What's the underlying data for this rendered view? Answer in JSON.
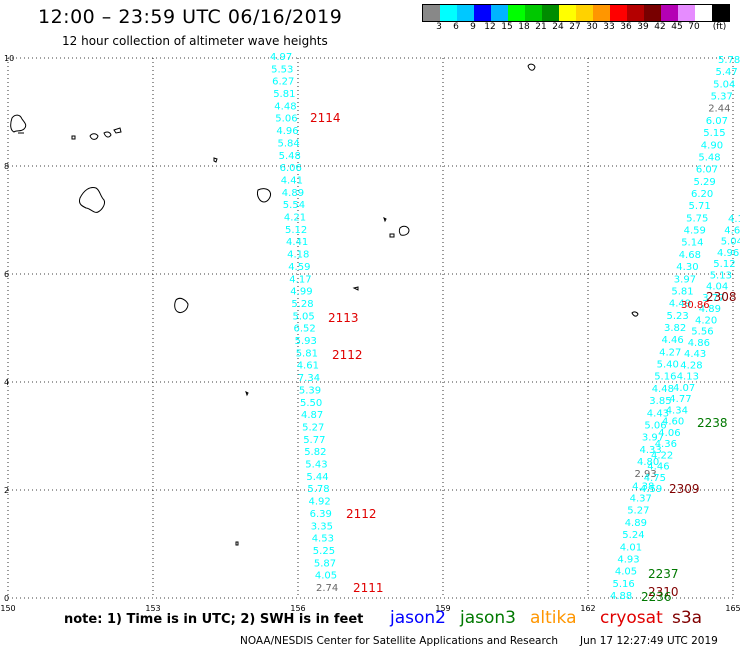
{
  "header": {
    "title": "12:00 – 23:59 UTC 06/16/2019",
    "subtitle": "12 hour collection of altimeter wave heights"
  },
  "legend": {
    "unit": "(ft)",
    "swatches": [
      {
        "color": "#888888",
        "label": ""
      },
      {
        "color": "#00ffff",
        "label": "3"
      },
      {
        "color": "#00c8ff",
        "label": "6"
      },
      {
        "color": "#0000ff",
        "label": "9"
      },
      {
        "color": "#00b4ff",
        "label": "12"
      },
      {
        "color": "#00ff00",
        "label": "15"
      },
      {
        "color": "#00c800",
        "label": "18"
      },
      {
        "color": "#008c00",
        "label": "21"
      },
      {
        "color": "#ffff00",
        "label": "24"
      },
      {
        "color": "#ffd200",
        "label": "27"
      },
      {
        "color": "#ff9600",
        "label": "30"
      },
      {
        "color": "#ff0000",
        "label": "33"
      },
      {
        "color": "#b40000",
        "label": "36"
      },
      {
        "color": "#780000",
        "label": "39"
      },
      {
        "color": "#b400b4",
        "label": "42"
      },
      {
        "color": "#e68cff",
        "label": "45"
      },
      {
        "color": "#ffffff",
        "label": "70"
      },
      {
        "color": "#000000",
        "label": "(ft)"
      }
    ]
  },
  "map": {
    "x_ticks": [
      "150",
      "153",
      "156",
      "159",
      "162",
      "165"
    ],
    "y_ticks": [
      "10",
      "8",
      "6",
      "4",
      "2",
      "0"
    ],
    "x_range": [
      150,
      165
    ],
    "y_range": [
      0,
      10
    ]
  },
  "tracks": [
    {
      "id": "track-156",
      "color": "#00ffff",
      "values": [
        "4.97",
        "5.53",
        "6.27",
        "5.81",
        "4.48",
        "5.06",
        "4.96",
        "5.84",
        "5.48",
        "6.06",
        "4.41",
        "4.89",
        "5.54",
        "4.21",
        "5.12",
        "4.41",
        "4.18",
        "4.59",
        "4.17",
        "4.99",
        "5.28",
        "5.05",
        "6.52",
        "5.93",
        "5.81",
        "4.61",
        "7.34",
        "5.39",
        "5.50",
        "4.87",
        "5.27",
        "5.77",
        "5.82",
        "5.43",
        "5.44",
        "5.78",
        "4.92",
        "6.39",
        "3.35",
        "4.53",
        "5.25",
        "5.87",
        "4.05",
        "2.74"
      ]
    },
    {
      "id": "track-164",
      "color": "#00ffff",
      "values": [
        "5.78",
        "5.47",
        "5.04",
        "5.37",
        "2.44",
        "6.07",
        "5.15",
        "4.90",
        "5.48",
        "6.07",
        "5.29",
        "6.20",
        "5.71",
        "5.75",
        "4.59",
        "5.14",
        "4.68",
        "4.30",
        "3.97",
        "5.81",
        "4.49",
        "5.23",
        "3.82",
        "4.46",
        "4.27",
        "5.40",
        "5.16",
        "4.48",
        "3.85",
        "4.43",
        "5.06",
        "3.97",
        "4.33",
        "4.80",
        "2.93",
        "4.38",
        "4.37",
        "5.27",
        "4.89",
        "5.24",
        "4.01",
        "4.93",
        "4.05",
        "5.16",
        "4.88"
      ]
    },
    {
      "id": "track-165",
      "color": "#00ffff",
      "values": [
        "4.1",
        "4.6",
        "5.04",
        "4.96",
        "5.12",
        "5.13",
        "4.04",
        "3.77",
        "4.89",
        "4.20",
        "5.56",
        "4.86",
        "4.43",
        "4.28",
        "4.13",
        "4.07",
        "4.77",
        "4.34",
        "4.60",
        "4.06",
        "4.36",
        "4.22",
        "4.46",
        "4.75",
        "4.59"
      ]
    }
  ],
  "pass_labels": [
    {
      "text": "2114",
      "color": "#e00000"
    },
    {
      "text": "2113",
      "color": "#e00000"
    },
    {
      "text": "2112",
      "color": "#e00000"
    },
    {
      "text": "2112",
      "color": "#e00000"
    },
    {
      "text": "2111",
      "color": "#e00000"
    },
    {
      "text": "2308",
      "color": "#800000"
    },
    {
      "text": "30.86",
      "color": "#e00000"
    },
    {
      "text": "2238",
      "color": "#007800"
    },
    {
      "text": "2309",
      "color": "#800000"
    },
    {
      "text": "2237",
      "color": "#007800"
    },
    {
      "text": "2310",
      "color": "#800000"
    },
    {
      "text": "2236",
      "color": "#007800"
    }
  ],
  "footer": {
    "note": "note: 1) Time is in UTC; 2) SWH is in feet",
    "satellites": [
      {
        "name": "jason2",
        "color": "#0000ff"
      },
      {
        "name": "jason3",
        "color": "#007800"
      },
      {
        "name": "altika",
        "color": "#ff9600"
      },
      {
        "name": "cryosat",
        "color": "#e00000"
      },
      {
        "name": "s3a",
        "color": "#800000"
      }
    ],
    "credit": "NOAA/NESDIS Center for Satellite Applications and Research",
    "timestamp": "Jun 17 12:27:49 UTC 2019"
  }
}
